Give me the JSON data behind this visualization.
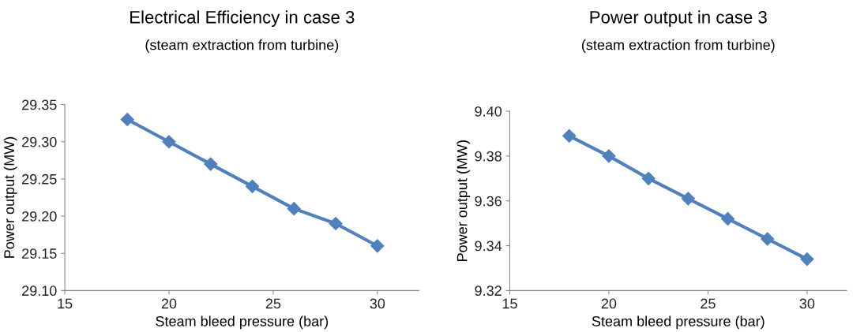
{
  "chart_data": [
    {
      "type": "line",
      "title": "Electrical Efficiency in case 3",
      "subtitle": "(steam extraction from turbine)",
      "xlabel": "Steam bleed pressure (bar)",
      "ylabel": "Power output (MW)",
      "x": [
        18,
        20,
        22,
        24,
        26,
        28,
        30
      ],
      "series": [
        {
          "color": "#4f81bd",
          "values": [
            29.33,
            29.3,
            29.27,
            29.24,
            29.21,
            29.19,
            29.16
          ]
        }
      ],
      "xlim": [
        15,
        32
      ],
      "xticks": [
        15,
        20,
        25,
        30
      ],
      "ylim": [
        29.1,
        29.35
      ],
      "yticks": [
        {
          "value": 29.1,
          "label": "29.10"
        },
        {
          "value": 29.15,
          "label": "29.15"
        },
        {
          "value": 29.2,
          "label": "29.20"
        },
        {
          "value": 29.25,
          "label": "29.25"
        },
        {
          "value": 29.3,
          "label": "29.30"
        },
        {
          "value": 29.35,
          "label": "29.35"
        }
      ],
      "marker": "diamond",
      "grid": false,
      "legend": false
    },
    {
      "type": "line",
      "title": "Power output in case 3",
      "subtitle": "(steam extraction from turbine)",
      "xlabel": "Steam bleed pressure (bar)",
      "ylabel": "Power output (MW)",
      "x": [
        18,
        20,
        22,
        24,
        26,
        28,
        30
      ],
      "series": [
        {
          "color": "#4f81bd",
          "values": [
            9.389,
            9.38,
            9.37,
            9.361,
            9.352,
            9.343,
            9.334
          ]
        }
      ],
      "xlim": [
        15,
        32
      ],
      "xticks": [
        15,
        20,
        25,
        30
      ],
      "ylim": [
        9.32,
        9.4
      ],
      "yticks": [
        {
          "value": 9.32,
          "label": "9.32"
        },
        {
          "value": 9.34,
          "label": "9.34"
        },
        {
          "value": 9.36,
          "label": "9.36"
        },
        {
          "value": 9.38,
          "label": "9.38"
        },
        {
          "value": 9.4,
          "label": "9.40"
        }
      ],
      "marker": "diamond",
      "grid": false,
      "legend": false
    }
  ]
}
